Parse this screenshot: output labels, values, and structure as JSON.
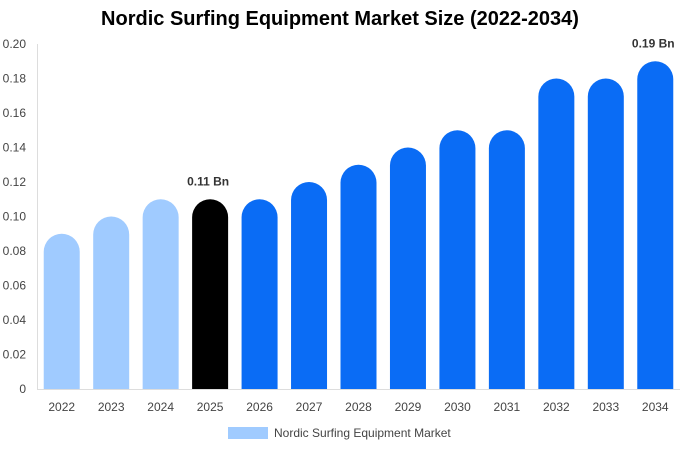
{
  "chart_data": {
    "type": "bar",
    "title": "Nordic Surfing Equipment Market Size (2022-2034)",
    "xlabel": "",
    "ylabel": "",
    "categories": [
      "2022",
      "2023",
      "2024",
      "2025",
      "2026",
      "2027",
      "2028",
      "2029",
      "2030",
      "2031",
      "2032",
      "2033",
      "2034"
    ],
    "series": [
      {
        "name": "Nordic Surfing Equipment Market",
        "values": [
          0.09,
          0.1,
          0.11,
          0.11,
          0.11,
          0.12,
          0.13,
          0.14,
          0.15,
          0.15,
          0.18,
          0.18,
          0.19
        ]
      }
    ],
    "bar_colors": [
      "#a0cbff",
      "#a0cbff",
      "#a0cbff",
      "#000000",
      "#0a6cf5",
      "#0a6cf5",
      "#0a6cf5",
      "#0a6cf5",
      "#0a6cf5",
      "#0a6cf5",
      "#0a6cf5",
      "#0a6cf5",
      "#0a6cf5"
    ],
    "ylim": [
      0,
      0.2
    ],
    "yticks": [
      0,
      0.02,
      0.04,
      0.06,
      0.08,
      0.1,
      0.12,
      0.14,
      0.16,
      0.18,
      0.2
    ],
    "ytick_labels": [
      "0",
      "0.02",
      "0.04",
      "0.06",
      "0.08",
      "0.10",
      "0.12",
      "0.14",
      "0.16",
      "0.18",
      "0.20"
    ],
    "grid": false,
    "annotations": [
      {
        "category": "2025",
        "text": "0.11 Bn"
      },
      {
        "category": "2034",
        "text": "0.19 Bn"
      }
    ],
    "legend": {
      "position": "bottom",
      "label": "Nordic Surfing Equipment Market",
      "color": "#a0cbff"
    }
  }
}
